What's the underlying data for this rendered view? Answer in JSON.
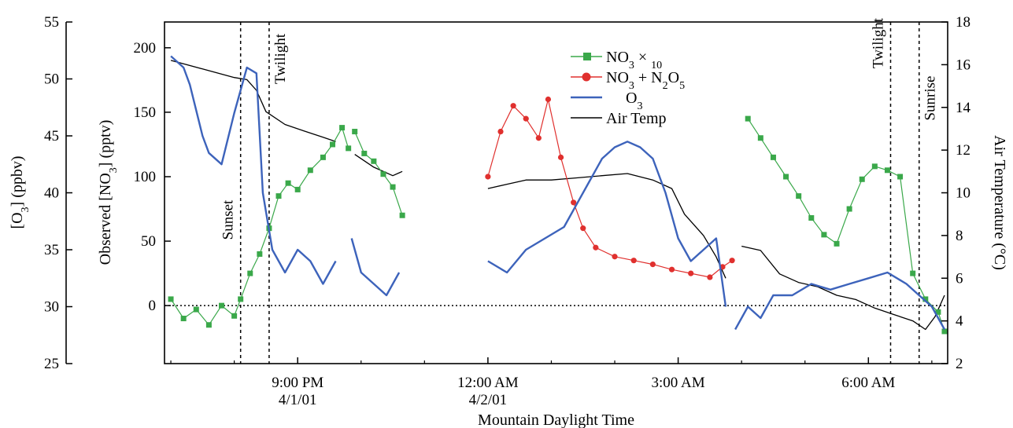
{
  "chart_data": {
    "type": "line",
    "xlabel": "Mountain Daylight Time",
    "x_range_hours": [
      18.9,
      31.25
    ],
    "x_ticks": [
      {
        "t": 21.0,
        "line1": "9:00 PM",
        "line2": "4/1/01"
      },
      {
        "t": 24.0,
        "line1": "12:00 AM",
        "line2": "4/2/01"
      },
      {
        "t": 27.0,
        "line1": "3:00 AM",
        "line2": ""
      },
      {
        "t": 30.0,
        "line1": "6:00 AM",
        "line2": ""
      }
    ],
    "axes": {
      "no3": {
        "label": "Observed [NO3] (pptv)",
        "ylim": [
          -45,
          220
        ],
        "ticks": [
          0,
          50,
          100,
          150,
          200
        ]
      },
      "o3": {
        "label": "[O3] (ppbv)",
        "ylim": [
          25,
          55
        ],
        "ticks": [
          25,
          30,
          35,
          40,
          45,
          50,
          55
        ]
      },
      "temp": {
        "label": "Air Temperature (°C)",
        "ylim": [
          2,
          18
        ],
        "ticks": [
          2,
          4,
          6,
          8,
          10,
          12,
          14,
          16,
          18
        ]
      }
    },
    "legend": {
      "placement": "top-right-of-center",
      "entries": [
        {
          "key": "no3x10",
          "text": "NO3 × 10"
        },
        {
          "key": "no3n2o5",
          "text": "NO3 + N2O5"
        },
        {
          "key": "o3",
          "text": "O3"
        },
        {
          "key": "temp",
          "text": "Air Temp"
        }
      ]
    },
    "vlines": [
      {
        "t": 20.1,
        "label": "Sunset"
      },
      {
        "t": 20.55,
        "label": "Twilight"
      },
      {
        "t": 30.35,
        "label": "Twilight"
      },
      {
        "t": 30.8,
        "label": "Sunrise"
      }
    ],
    "zero_line": 0,
    "series": [
      {
        "key": "no3x10",
        "name": "NO3 × 10",
        "color": "#3aa84a",
        "axis": "no3",
        "marker": "square",
        "segments": [
          [
            [
              19.0,
              5
            ],
            [
              19.2,
              -10
            ],
            [
              19.4,
              -3
            ],
            [
              19.6,
              -15
            ],
            [
              19.8,
              0
            ],
            [
              20.0,
              -8
            ],
            [
              20.1,
              5
            ],
            [
              20.25,
              25
            ],
            [
              20.4,
              40
            ],
            [
              20.55,
              60
            ],
            [
              20.7,
              85
            ],
            [
              20.85,
              95
            ],
            [
              21.0,
              90
            ],
            [
              21.2,
              105
            ],
            [
              21.4,
              115
            ],
            [
              21.55,
              125
            ],
            [
              21.7,
              138
            ],
            [
              21.8,
              122
            ]
          ],
          [
            [
              21.9,
              135
            ],
            [
              22.05,
              118
            ],
            [
              22.2,
              112
            ],
            [
              22.35,
              102
            ],
            [
              22.5,
              92
            ],
            [
              22.65,
              70
            ]
          ],
          [
            [
              28.1,
              145
            ],
            [
              28.3,
              130
            ],
            [
              28.5,
              115
            ],
            [
              28.7,
              100
            ],
            [
              28.9,
              85
            ],
            [
              29.1,
              68
            ],
            [
              29.3,
              55
            ],
            [
              29.5,
              48
            ],
            [
              29.7,
              75
            ],
            [
              29.9,
              98
            ],
            [
              30.1,
              108
            ],
            [
              30.3,
              105
            ],
            [
              30.5,
              100
            ],
            [
              30.7,
              25
            ],
            [
              30.9,
              5
            ],
            [
              31.1,
              -5
            ],
            [
              31.2,
              -20
            ]
          ]
        ]
      },
      {
        "key": "no3n2o5",
        "name": "NO3 + N2O5",
        "color": "#e0302e",
        "axis": "no3",
        "marker": "circle",
        "segments": [
          [
            [
              24.0,
              100
            ],
            [
              24.2,
              135
            ],
            [
              24.4,
              155
            ],
            [
              24.6,
              145
            ],
            [
              24.8,
              130
            ],
            [
              24.95,
              160
            ],
            [
              25.15,
              115
            ],
            [
              25.35,
              80
            ],
            [
              25.5,
              60
            ],
            [
              25.7,
              45
            ],
            [
              26.0,
              38
            ],
            [
              26.3,
              35
            ],
            [
              26.6,
              32
            ],
            [
              26.9,
              28
            ],
            [
              27.2,
              25
            ],
            [
              27.5,
              22
            ],
            [
              27.7,
              30
            ],
            [
              27.85,
              35
            ]
          ]
        ]
      },
      {
        "key": "o3",
        "name": "O3",
        "color": "#3d63bb",
        "axis": "o3",
        "marker": "none",
        "segments": [
          [
            [
              19.0,
              52
            ],
            [
              19.2,
              51
            ],
            [
              19.3,
              49.5
            ],
            [
              19.5,
              45
            ],
            [
              19.6,
              43.5
            ],
            [
              19.8,
              42.5
            ],
            [
              20.0,
              47
            ],
            [
              20.2,
              51
            ],
            [
              20.35,
              50.5
            ],
            [
              20.45,
              40
            ],
            [
              20.6,
              35
            ],
            [
              20.8,
              33
            ],
            [
              21.0,
              35
            ],
            [
              21.2,
              34
            ],
            [
              21.4,
              32
            ],
            [
              21.6,
              34
            ]
          ],
          [
            [
              21.85,
              36
            ],
            [
              22.0,
              33
            ],
            [
              22.2,
              32
            ],
            [
              22.4,
              31
            ],
            [
              22.6,
              33
            ]
          ],
          [
            [
              24.0,
              34
            ],
            [
              24.3,
              33
            ],
            [
              24.6,
              35
            ],
            [
              24.9,
              36
            ],
            [
              25.2,
              37
            ],
            [
              25.4,
              39
            ],
            [
              25.6,
              41
            ],
            [
              25.8,
              43
            ],
            [
              26.0,
              44
            ],
            [
              26.2,
              44.5
            ],
            [
              26.4,
              44
            ],
            [
              26.6,
              43
            ],
            [
              26.8,
              40
            ],
            [
              27.0,
              36
            ],
            [
              27.2,
              34
            ],
            [
              27.4,
              35
            ],
            [
              27.6,
              36
            ],
            [
              27.75,
              30
            ]
          ],
          [
            [
              27.9,
              28
            ],
            [
              28.1,
              30
            ],
            [
              28.3,
              29
            ],
            [
              28.5,
              31
            ],
            [
              28.8,
              31
            ],
            [
              29.1,
              32
            ],
            [
              29.4,
              31.5
            ],
            [
              29.7,
              32
            ],
            [
              30.0,
              32.5
            ],
            [
              30.3,
              33
            ],
            [
              30.6,
              32
            ],
            [
              30.8,
              31
            ],
            [
              31.0,
              30
            ],
            [
              31.2,
              28
            ]
          ]
        ]
      },
      {
        "key": "temp",
        "name": "Air Temp",
        "color": "#000000",
        "axis": "temp",
        "marker": "none",
        "segments": [
          [
            [
              19.0,
              16.2
            ],
            [
              19.5,
              15.8
            ],
            [
              20.0,
              15.4
            ],
            [
              20.2,
              15.3
            ],
            [
              20.35,
              14.8
            ],
            [
              20.5,
              13.8
            ],
            [
              20.8,
              13.2
            ],
            [
              21.1,
              12.9
            ],
            [
              21.4,
              12.6
            ],
            [
              21.6,
              12.4
            ]
          ],
          [
            [
              21.9,
              11.8
            ],
            [
              22.2,
              11.2
            ],
            [
              22.5,
              10.8
            ],
            [
              22.65,
              11.0
            ]
          ],
          [
            [
              24.0,
              10.2
            ],
            [
              24.3,
              10.4
            ],
            [
              24.6,
              10.6
            ],
            [
              25.0,
              10.6
            ],
            [
              25.4,
              10.7
            ],
            [
              25.8,
              10.8
            ],
            [
              26.2,
              10.9
            ],
            [
              26.6,
              10.6
            ],
            [
              26.9,
              10.2
            ],
            [
              27.1,
              9.0
            ],
            [
              27.4,
              8.0
            ],
            [
              27.6,
              7.0
            ],
            [
              27.75,
              6.0
            ]
          ],
          [
            [
              28.0,
              7.5
            ],
            [
              28.3,
              7.3
            ],
            [
              28.6,
              6.2
            ],
            [
              28.9,
              5.8
            ],
            [
              29.2,
              5.6
            ],
            [
              29.5,
              5.2
            ],
            [
              29.8,
              5.0
            ],
            [
              30.1,
              4.6
            ],
            [
              30.4,
              4.3
            ],
            [
              30.7,
              4.0
            ],
            [
              30.9,
              3.6
            ],
            [
              31.05,
              4.2
            ],
            [
              31.2,
              5.2
            ]
          ]
        ]
      }
    ]
  }
}
